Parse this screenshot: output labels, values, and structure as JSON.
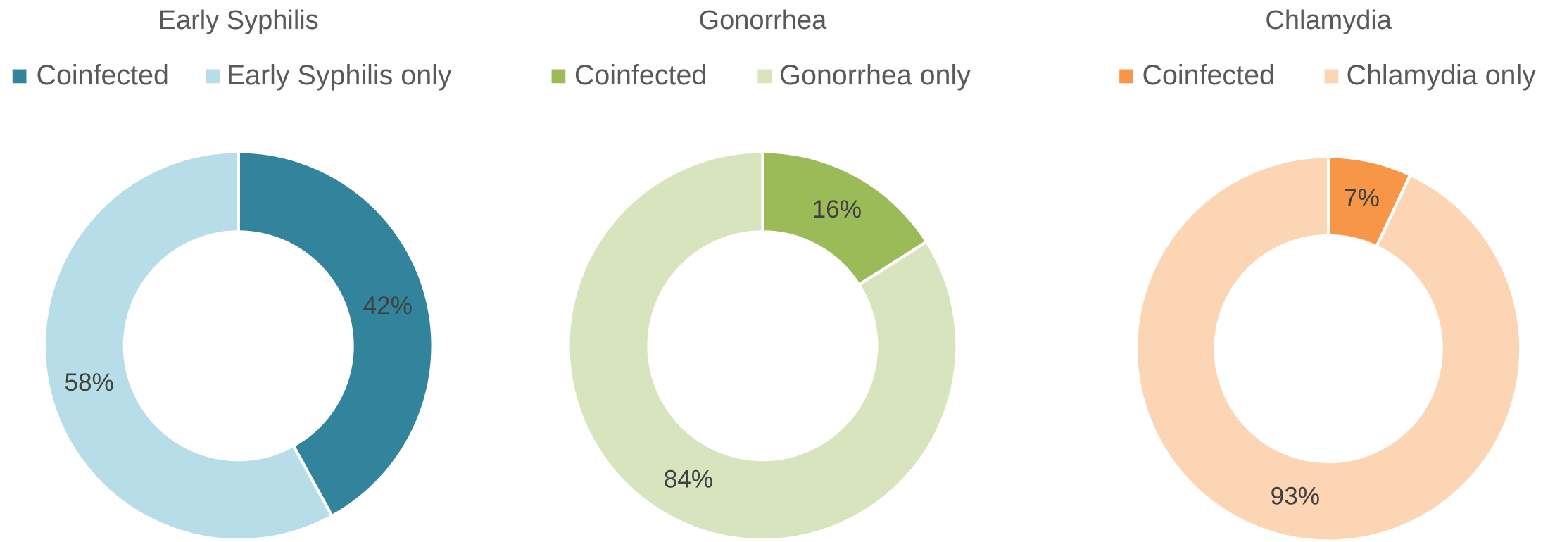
{
  "chart_data": [
    {
      "type": "donut",
      "title": "Early Syphilis",
      "categories": [
        "Coinfected",
        "Early Syphilis only"
      ],
      "values": [
        42,
        58
      ],
      "value_labels": [
        "42%",
        "58%"
      ],
      "colors": [
        "#31849b",
        "#b7dde8"
      ]
    },
    {
      "type": "donut",
      "title": "Gonorrhea",
      "categories": [
        "Coinfected",
        "Gonorrhea only"
      ],
      "values": [
        16,
        84
      ],
      "value_labels": [
        "16%",
        "84%"
      ],
      "colors": [
        "#9bbb59",
        "#d7e4bd"
      ]
    },
    {
      "type": "donut",
      "title": "Chlamydia",
      "categories": [
        "Coinfected",
        "Chlamydia only"
      ],
      "values": [
        7,
        93
      ],
      "value_labels": [
        "7%",
        "93%"
      ],
      "colors": [
        "#f79646",
        "#fcd5b5"
      ]
    }
  ]
}
